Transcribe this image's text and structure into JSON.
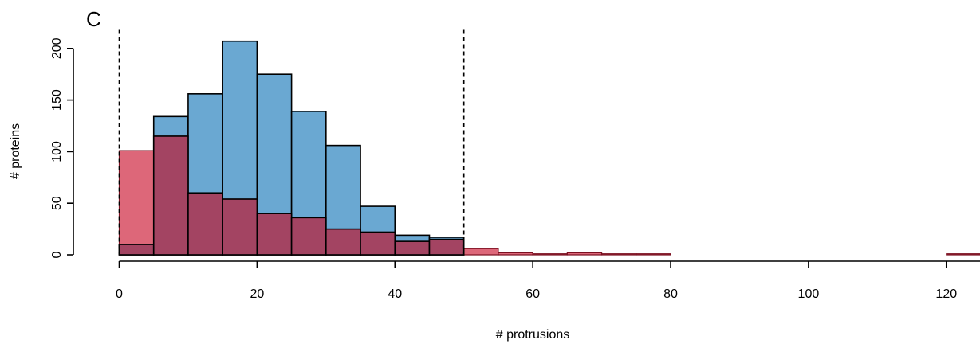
{
  "chart_data": {
    "type": "bar",
    "subtype": "overlaid-histogram",
    "panel_label": "C",
    "xlabel": "# protrusions",
    "ylabel": "# proteins",
    "xlim": [
      0,
      125
    ],
    "ylim": [
      0,
      215
    ],
    "x_ticks": [
      0,
      20,
      40,
      60,
      80,
      100,
      120
    ],
    "y_ticks": [
      0,
      50,
      100,
      150,
      200
    ],
    "bin_width": 5,
    "bin_starts": [
      0,
      5,
      10,
      15,
      20,
      25,
      30,
      35,
      40,
      45,
      50,
      55,
      60,
      65,
      70,
      75,
      80,
      85,
      90,
      95,
      100,
      105,
      110,
      115,
      120
    ],
    "series": [
      {
        "color": "#6aa8d2",
        "values": [
          10,
          134,
          156,
          207,
          175,
          139,
          106,
          47,
          19,
          17,
          0,
          0,
          0,
          0,
          0,
          0,
          0,
          0,
          0,
          0,
          0,
          0,
          0,
          0,
          0
        ]
      },
      {
        "color": "#d9566a",
        "values": [
          101,
          115,
          60,
          54,
          40,
          36,
          25,
          22,
          13,
          15,
          6,
          2,
          1,
          2,
          1,
          1,
          0,
          0,
          0,
          0,
          0,
          0,
          0,
          0,
          1
        ]
      }
    ],
    "overlap_color": "#a34462",
    "reference_lines": [
      0,
      50
    ],
    "legend": "none",
    "grid": false
  }
}
